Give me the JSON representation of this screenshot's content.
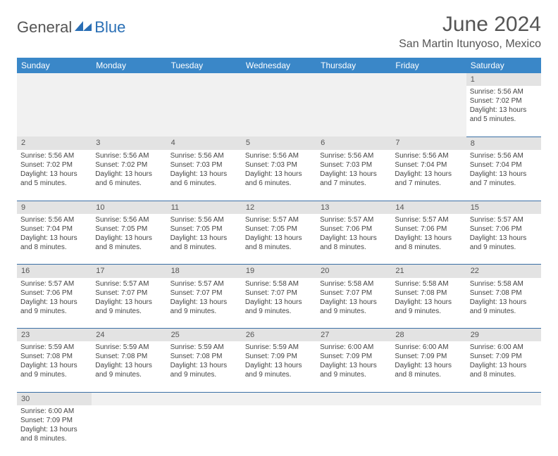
{
  "brand": {
    "part1": "General",
    "part2": "Blue",
    "logo_fill": "#2a6fb5"
  },
  "title": "June 2024",
  "location": "San Martin Itunyoso, Mexico",
  "colors": {
    "header_bg": "#3a87c8",
    "header_fg": "#ffffff",
    "daynum_bg": "#e3e3e3",
    "cell_border": "#3a6fa5",
    "blank_bg": "#f1f1f1"
  },
  "days_of_week": [
    "Sunday",
    "Monday",
    "Tuesday",
    "Wednesday",
    "Thursday",
    "Friday",
    "Saturday"
  ],
  "weeks": [
    {
      "nums": [
        "",
        "",
        "",
        "",
        "",
        "",
        "1"
      ],
      "cells": [
        null,
        null,
        null,
        null,
        null,
        null,
        {
          "sr": "Sunrise: 5:56 AM",
          "ss": "Sunset: 7:02 PM",
          "d1": "Daylight: 13 hours",
          "d2": "and 5 minutes."
        }
      ]
    },
    {
      "nums": [
        "2",
        "3",
        "4",
        "5",
        "6",
        "7",
        "8"
      ],
      "cells": [
        {
          "sr": "Sunrise: 5:56 AM",
          "ss": "Sunset: 7:02 PM",
          "d1": "Daylight: 13 hours",
          "d2": "and 5 minutes."
        },
        {
          "sr": "Sunrise: 5:56 AM",
          "ss": "Sunset: 7:02 PM",
          "d1": "Daylight: 13 hours",
          "d2": "and 6 minutes."
        },
        {
          "sr": "Sunrise: 5:56 AM",
          "ss": "Sunset: 7:03 PM",
          "d1": "Daylight: 13 hours",
          "d2": "and 6 minutes."
        },
        {
          "sr": "Sunrise: 5:56 AM",
          "ss": "Sunset: 7:03 PM",
          "d1": "Daylight: 13 hours",
          "d2": "and 6 minutes."
        },
        {
          "sr": "Sunrise: 5:56 AM",
          "ss": "Sunset: 7:03 PM",
          "d1": "Daylight: 13 hours",
          "d2": "and 7 minutes."
        },
        {
          "sr": "Sunrise: 5:56 AM",
          "ss": "Sunset: 7:04 PM",
          "d1": "Daylight: 13 hours",
          "d2": "and 7 minutes."
        },
        {
          "sr": "Sunrise: 5:56 AM",
          "ss": "Sunset: 7:04 PM",
          "d1": "Daylight: 13 hours",
          "d2": "and 7 minutes."
        }
      ]
    },
    {
      "nums": [
        "9",
        "10",
        "11",
        "12",
        "13",
        "14",
        "15"
      ],
      "cells": [
        {
          "sr": "Sunrise: 5:56 AM",
          "ss": "Sunset: 7:04 PM",
          "d1": "Daylight: 13 hours",
          "d2": "and 8 minutes."
        },
        {
          "sr": "Sunrise: 5:56 AM",
          "ss": "Sunset: 7:05 PM",
          "d1": "Daylight: 13 hours",
          "d2": "and 8 minutes."
        },
        {
          "sr": "Sunrise: 5:56 AM",
          "ss": "Sunset: 7:05 PM",
          "d1": "Daylight: 13 hours",
          "d2": "and 8 minutes."
        },
        {
          "sr": "Sunrise: 5:57 AM",
          "ss": "Sunset: 7:05 PM",
          "d1": "Daylight: 13 hours",
          "d2": "and 8 minutes."
        },
        {
          "sr": "Sunrise: 5:57 AM",
          "ss": "Sunset: 7:06 PM",
          "d1": "Daylight: 13 hours",
          "d2": "and 8 minutes."
        },
        {
          "sr": "Sunrise: 5:57 AM",
          "ss": "Sunset: 7:06 PM",
          "d1": "Daylight: 13 hours",
          "d2": "and 8 minutes."
        },
        {
          "sr": "Sunrise: 5:57 AM",
          "ss": "Sunset: 7:06 PM",
          "d1": "Daylight: 13 hours",
          "d2": "and 9 minutes."
        }
      ]
    },
    {
      "nums": [
        "16",
        "17",
        "18",
        "19",
        "20",
        "21",
        "22"
      ],
      "cells": [
        {
          "sr": "Sunrise: 5:57 AM",
          "ss": "Sunset: 7:06 PM",
          "d1": "Daylight: 13 hours",
          "d2": "and 9 minutes."
        },
        {
          "sr": "Sunrise: 5:57 AM",
          "ss": "Sunset: 7:07 PM",
          "d1": "Daylight: 13 hours",
          "d2": "and 9 minutes."
        },
        {
          "sr": "Sunrise: 5:57 AM",
          "ss": "Sunset: 7:07 PM",
          "d1": "Daylight: 13 hours",
          "d2": "and 9 minutes."
        },
        {
          "sr": "Sunrise: 5:58 AM",
          "ss": "Sunset: 7:07 PM",
          "d1": "Daylight: 13 hours",
          "d2": "and 9 minutes."
        },
        {
          "sr": "Sunrise: 5:58 AM",
          "ss": "Sunset: 7:07 PM",
          "d1": "Daylight: 13 hours",
          "d2": "and 9 minutes."
        },
        {
          "sr": "Sunrise: 5:58 AM",
          "ss": "Sunset: 7:08 PM",
          "d1": "Daylight: 13 hours",
          "d2": "and 9 minutes."
        },
        {
          "sr": "Sunrise: 5:58 AM",
          "ss": "Sunset: 7:08 PM",
          "d1": "Daylight: 13 hours",
          "d2": "and 9 minutes."
        }
      ]
    },
    {
      "nums": [
        "23",
        "24",
        "25",
        "26",
        "27",
        "28",
        "29"
      ],
      "cells": [
        {
          "sr": "Sunrise: 5:59 AM",
          "ss": "Sunset: 7:08 PM",
          "d1": "Daylight: 13 hours",
          "d2": "and 9 minutes."
        },
        {
          "sr": "Sunrise: 5:59 AM",
          "ss": "Sunset: 7:08 PM",
          "d1": "Daylight: 13 hours",
          "d2": "and 9 minutes."
        },
        {
          "sr": "Sunrise: 5:59 AM",
          "ss": "Sunset: 7:08 PM",
          "d1": "Daylight: 13 hours",
          "d2": "and 9 minutes."
        },
        {
          "sr": "Sunrise: 5:59 AM",
          "ss": "Sunset: 7:09 PM",
          "d1": "Daylight: 13 hours",
          "d2": "and 9 minutes."
        },
        {
          "sr": "Sunrise: 6:00 AM",
          "ss": "Sunset: 7:09 PM",
          "d1": "Daylight: 13 hours",
          "d2": "and 9 minutes."
        },
        {
          "sr": "Sunrise: 6:00 AM",
          "ss": "Sunset: 7:09 PM",
          "d1": "Daylight: 13 hours",
          "d2": "and 8 minutes."
        },
        {
          "sr": "Sunrise: 6:00 AM",
          "ss": "Sunset: 7:09 PM",
          "d1": "Daylight: 13 hours",
          "d2": "and 8 minutes."
        }
      ]
    },
    {
      "nums": [
        "30",
        "",
        "",
        "",
        "",
        "",
        ""
      ],
      "cells": [
        {
          "sr": "Sunrise: 6:00 AM",
          "ss": "Sunset: 7:09 PM",
          "d1": "Daylight: 13 hours",
          "d2": "and 8 minutes."
        },
        null,
        null,
        null,
        null,
        null,
        null
      ]
    }
  ]
}
